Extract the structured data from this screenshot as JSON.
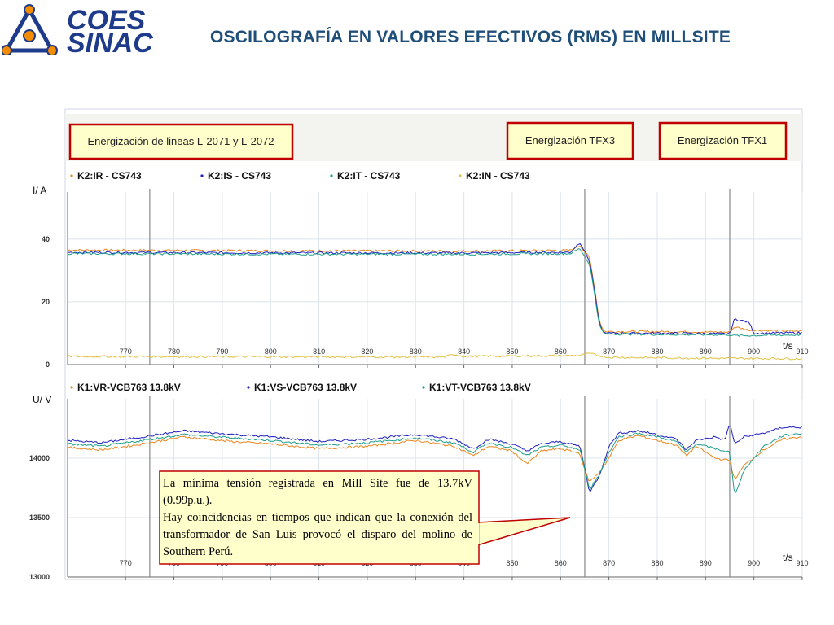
{
  "logo": {
    "line1": "COES",
    "line2": "SINAC"
  },
  "slide_title": "OSCILOGRAFÍA EN VALORES EFECTIVOS (RMS) EN MILLSITE",
  "events": [
    "Energización de lineas L-2071 y L-2072",
    "Energización TFX3",
    "Energización TFX1"
  ],
  "callout": {
    "line1": "La mínima tensión registrada en Mill Site fue de 13.7kV (0.99p.u.).",
    "line2": "Hay coincidencias  en tiempos que indican que la conexión del transformador de San Luis provocó el disparo del molino de Southern Perú."
  },
  "colors": {
    "title": "#1f4e79",
    "logo_blue": "#1e3a8a",
    "logo_orange": "#f28c00",
    "event_border": "#c00000",
    "event_fill": "#ffffcc",
    "grid": "#dde4ec",
    "marker": "#888888",
    "series_orange": "#e8871e",
    "series_blue": "#1f1fbf",
    "series_green": "#1e9e8a",
    "series_yellow": "#e0c040",
    "series_red": "#d04030"
  },
  "chart_data": [
    {
      "type": "line",
      "ylabel": "I/ A",
      "xlabel": "t/s",
      "xlim": [
        758,
        910
      ],
      "ylim": [
        0,
        55
      ],
      "x_ticks": [
        770,
        780,
        790,
        800,
        810,
        820,
        830,
        840,
        850,
        860,
        870,
        880,
        890,
        900,
        910
      ],
      "y_ticks": [
        0,
        20,
        40
      ],
      "markers": [
        775,
        865,
        895
      ],
      "grid": true,
      "series": [
        {
          "name": "K2:IR - CS743",
          "color": "series_orange",
          "points": [
            [
              758,
              36.5
            ],
            [
              800,
              36.3
            ],
            [
              840,
              36.2
            ],
            [
              862,
              36.4
            ],
            [
              864,
              38
            ],
            [
              866,
              34
            ],
            [
              867,
              25
            ],
            [
              868,
              14
            ],
            [
              869,
              10.5
            ],
            [
              880,
              10.5
            ],
            [
              895,
              10.3
            ],
            [
              896,
              12
            ],
            [
              899,
              11
            ],
            [
              910,
              10.6
            ]
          ]
        },
        {
          "name": "K2:IS - CS743",
          "color": "series_blue",
          "points": [
            [
              758,
              35.8
            ],
            [
              800,
              35.6
            ],
            [
              840,
              35.6
            ],
            [
              862,
              35.8
            ],
            [
              864,
              39
            ],
            [
              866,
              33
            ],
            [
              867,
              24
            ],
            [
              868,
              13
            ],
            [
              869,
              10
            ],
            [
              880,
              10
            ],
            [
              895,
              9.8
            ],
            [
              896,
              14.5
            ],
            [
              899,
              13.5
            ],
            [
              900,
              10
            ],
            [
              910,
              10.1
            ]
          ]
        },
        {
          "name": "K2:IT - CS743",
          "color": "series_green",
          "points": [
            [
              758,
              35.4
            ],
            [
              800,
              35.2
            ],
            [
              840,
              35.2
            ],
            [
              862,
              35.4
            ],
            [
              864,
              37
            ],
            [
              866,
              32
            ],
            [
              867,
              23
            ],
            [
              868,
              12.5
            ],
            [
              869,
              9.8
            ],
            [
              880,
              9.6
            ],
            [
              895,
              9.5
            ],
            [
              896,
              9.2
            ],
            [
              910,
              9.5
            ]
          ]
        },
        {
          "name": "K2:IN - CS743",
          "color": "series_yellow",
          "points": [
            [
              758,
              2.6
            ],
            [
              800,
              2.5
            ],
            [
              836,
              2.4
            ],
            [
              838,
              3.3
            ],
            [
              840,
              2.6
            ],
            [
              864,
              2.9
            ],
            [
              866,
              3.5
            ],
            [
              870,
              2.3
            ],
            [
              894,
              2.0
            ],
            [
              910,
              1.9
            ]
          ]
        }
      ]
    },
    {
      "type": "line",
      "ylabel": "U/ V",
      "xlabel": "t/s",
      "xlim": [
        758,
        910
      ],
      "ylim": [
        13000,
        14500
      ],
      "x_ticks": [
        770,
        780,
        790,
        800,
        810,
        820,
        830,
        840,
        850,
        860,
        870,
        880,
        890,
        900,
        910
      ],
      "y_ticks": [
        13000,
        13500,
        14000
      ],
      "markers": [
        775,
        865,
        895
      ],
      "grid": true,
      "series": [
        {
          "name": "K1:VR-VCB763 13.8kV",
          "color": "series_orange",
          "points": [
            [
              758,
              14090
            ],
            [
              765,
              14070
            ],
            [
              772,
              14110
            ],
            [
              782,
              14180
            ],
            [
              792,
              14140
            ],
            [
              800,
              14120
            ],
            [
              810,
              14080
            ],
            [
              820,
              14100
            ],
            [
              830,
              14150
            ],
            [
              838,
              14100
            ],
            [
              842,
              14020
            ],
            [
              845,
              14100
            ],
            [
              850,
              14060
            ],
            [
              853,
              13950
            ],
            [
              856,
              14060
            ],
            [
              860,
              14080
            ],
            [
              864,
              14040
            ],
            [
              865,
              13900
            ],
            [
              866,
              13800
            ],
            [
              868,
              13880
            ],
            [
              870,
              14000
            ],
            [
              872,
              14150
            ],
            [
              876,
              14190
            ],
            [
              880,
              14150
            ],
            [
              884,
              14110
            ],
            [
              886,
              14020
            ],
            [
              888,
              14100
            ],
            [
              892,
              14000
            ],
            [
              895,
              13980
            ],
            [
              896,
              13820
            ],
            [
              898,
              13940
            ],
            [
              902,
              14070
            ],
            [
              906,
              14160
            ],
            [
              910,
              14180
            ]
          ]
        },
        {
          "name": "K1:VS-VCB763 13.8kV",
          "color": "series_blue",
          "points": [
            [
              758,
              14150
            ],
            [
              765,
              14130
            ],
            [
              772,
              14170
            ],
            [
              782,
              14230
            ],
            [
              792,
              14200
            ],
            [
              800,
              14180
            ],
            [
              810,
              14140
            ],
            [
              820,
              14160
            ],
            [
              830,
              14200
            ],
            [
              838,
              14160
            ],
            [
              842,
              14080
            ],
            [
              845,
              14160
            ],
            [
              850,
              14120
            ],
            [
              853,
              14060
            ],
            [
              856,
              14120
            ],
            [
              860,
              14140
            ],
            [
              864,
              14100
            ],
            [
              865,
              13920
            ],
            [
              866,
              13710
            ],
            [
              868,
              13850
            ],
            [
              870,
              14100
            ],
            [
              872,
              14210
            ],
            [
              876,
              14230
            ],
            [
              880,
              14200
            ],
            [
              884,
              14160
            ],
            [
              886,
              14070
            ],
            [
              888,
              14150
            ],
            [
              892,
              14180
            ],
            [
              894,
              14150
            ],
            [
              895,
              14300
            ],
            [
              896,
              14120
            ],
            [
              898,
              14180
            ],
            [
              902,
              14210
            ],
            [
              906,
              14260
            ],
            [
              910,
              14260
            ]
          ]
        },
        {
          "name": "K1:VT-VCB763 13.8kV",
          "color": "series_green",
          "points": [
            [
              758,
              14120
            ],
            [
              765,
              14100
            ],
            [
              772,
              14140
            ],
            [
              782,
              14200
            ],
            [
              792,
              14170
            ],
            [
              800,
              14150
            ],
            [
              810,
              14110
            ],
            [
              820,
              14130
            ],
            [
              830,
              14170
            ],
            [
              838,
              14130
            ],
            [
              842,
              14050
            ],
            [
              845,
              14130
            ],
            [
              850,
              14090
            ],
            [
              853,
              14020
            ],
            [
              856,
              14090
            ],
            [
              860,
              14110
            ],
            [
              864,
              14070
            ],
            [
              865,
              13910
            ],
            [
              866,
              13740
            ],
            [
              868,
              13860
            ],
            [
              870,
              14050
            ],
            [
              872,
              14180
            ],
            [
              876,
              14210
            ],
            [
              880,
              14180
            ],
            [
              884,
              14140
            ],
            [
              886,
              14050
            ],
            [
              888,
              14120
            ],
            [
              892,
              14080
            ],
            [
              895,
              14050
            ],
            [
              896,
              13690
            ],
            [
              898,
              13900
            ],
            [
              902,
              14100
            ],
            [
              906,
              14190
            ],
            [
              910,
              14210
            ]
          ]
        }
      ]
    }
  ]
}
